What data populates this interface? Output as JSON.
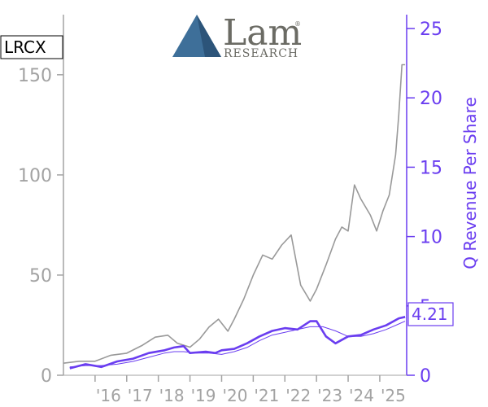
{
  "chart_data": {
    "type": "line",
    "ticker": "LRCX",
    "logo": {
      "name": "Lam",
      "sub": "RESEARCH",
      "mark": "®"
    },
    "ylabel_right": "Q Revenue Per Share",
    "last_value_label": "4.21",
    "colors": {
      "price": "#999999",
      "revenue": "#6a3df0",
      "axis_left": "#a3a3a3",
      "axis_right": "#6a3df0"
    },
    "x_ticks": [
      "'16",
      "'17",
      "'18",
      "'19",
      "'20",
      "'21",
      "'22",
      "'23",
      "'24",
      "'25"
    ],
    "x_tick_values": [
      2016,
      2017,
      2018,
      2019,
      2020,
      2021,
      2022,
      2023,
      2024,
      2025
    ],
    "x_range": [
      2015.0,
      2025.85
    ],
    "y_left_ticks": [
      "0",
      "50",
      "100",
      "150"
    ],
    "y_left_tick_values": [
      0,
      50,
      100,
      150
    ],
    "y_left_range": [
      0,
      180
    ],
    "y_right_ticks": [
      "0",
      "5",
      "10",
      "15",
      "20",
      "25"
    ],
    "y_right_tick_values": [
      0,
      5,
      10,
      15,
      20,
      25
    ],
    "y_right_range": [
      0,
      26
    ],
    "series": [
      {
        "key": "price",
        "x": [
          2015.0,
          2015.5,
          2016.0,
          2016.5,
          2017.0,
          2017.5,
          2017.9,
          2018.3,
          2018.6,
          2019.0,
          2019.3,
          2019.6,
          2019.9,
          2020.2,
          2020.4,
          2020.7,
          2021.0,
          2021.3,
          2021.6,
          2021.9,
          2022.2,
          2022.5,
          2022.8,
          2023.0,
          2023.3,
          2023.6,
          2023.8,
          2024.0,
          2024.2,
          2024.4,
          2024.7,
          2024.9,
          2025.1,
          2025.3,
          2025.5,
          2025.6,
          2025.7,
          2025.8
        ],
        "values": [
          6,
          7,
          7,
          10,
          11,
          15,
          19,
          20,
          16,
          14,
          18,
          24,
          28,
          22,
          28,
          38,
          50,
          60,
          58,
          65,
          70,
          45,
          37,
          43,
          55,
          68,
          74,
          72,
          95,
          88,
          80,
          72,
          82,
          90,
          110,
          130,
          155,
          155
        ]
      },
      {
        "key": "revenue_ttm",
        "x": [
          2015.2,
          2015.7,
          2016.2,
          2016.7,
          2017.2,
          2017.7,
          2018.2,
          2018.5,
          2018.8,
          2019.2,
          2019.6,
          2020.0,
          2020.4,
          2020.8,
          2021.2,
          2021.6,
          2022.0,
          2022.4,
          2022.8,
          2023.2,
          2023.6,
          2024.0,
          2024.4,
          2024.8,
          2025.2,
          2025.6,
          2025.8
        ],
        "values": [
          0.6,
          0.7,
          0.7,
          0.8,
          1.0,
          1.3,
          1.6,
          1.7,
          1.7,
          1.6,
          1.6,
          1.5,
          1.7,
          2.0,
          2.5,
          2.9,
          3.1,
          3.3,
          3.5,
          3.5,
          3.2,
          2.8,
          2.8,
          3.0,
          3.3,
          3.7,
          3.9
        ]
      },
      {
        "key": "revenue_q",
        "x": [
          2015.2,
          2015.7,
          2016.2,
          2016.7,
          2017.2,
          2017.7,
          2018.2,
          2018.5,
          2018.8,
          2019.0,
          2019.5,
          2019.8,
          2020.0,
          2020.4,
          2020.8,
          2021.2,
          2021.6,
          2022.0,
          2022.4,
          2022.8,
          2023.0,
          2023.3,
          2023.6,
          2024.0,
          2024.4,
          2024.8,
          2025.2,
          2025.6,
          2025.8
        ],
        "values": [
          0.5,
          0.8,
          0.6,
          1.0,
          1.2,
          1.6,
          1.8,
          2.0,
          2.1,
          1.6,
          1.7,
          1.6,
          1.8,
          1.9,
          2.3,
          2.8,
          3.2,
          3.4,
          3.3,
          3.9,
          3.9,
          2.8,
          2.3,
          2.8,
          2.9,
          3.3,
          3.6,
          4.1,
          4.21
        ]
      }
    ]
  }
}
